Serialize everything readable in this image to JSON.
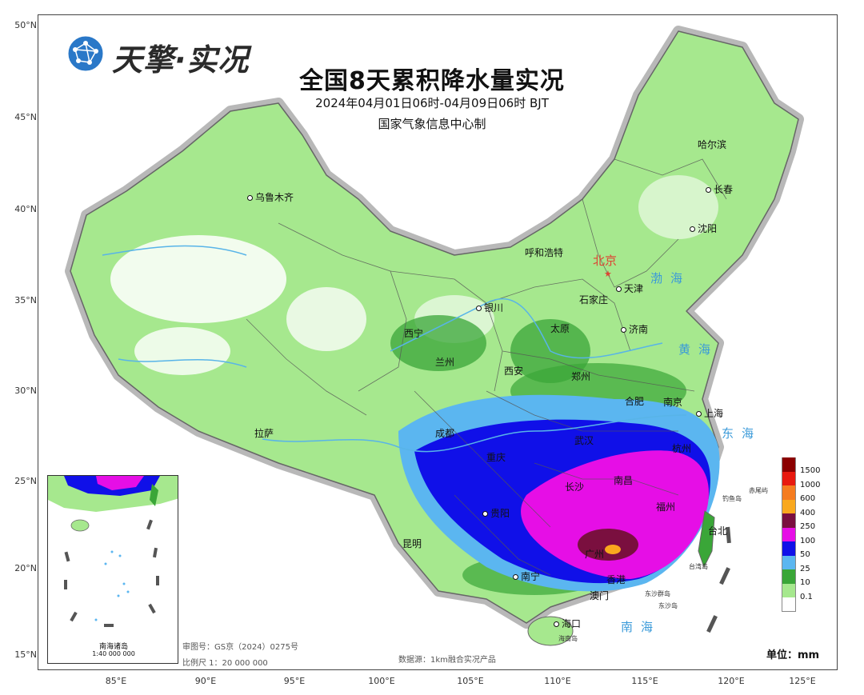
{
  "logo": {
    "text": "天擎·实况",
    "icon": "globe-network-icon"
  },
  "title": "全国8天累积降水量实况",
  "subtitle": "2024年04月01日06时-04月09日06时 BJT",
  "producer": "国家气象信息中心制",
  "axes": {
    "latitudes": [
      "50°N",
      "45°N",
      "40°N",
      "35°N",
      "30°N",
      "25°N",
      "20°N",
      "15°N"
    ],
    "longitudes": [
      "85°E",
      "90°E",
      "95°E",
      "100°E",
      "105°E",
      "110°E",
      "115°E",
      "120°E",
      "125°E"
    ]
  },
  "capital": "北京",
  "cities": [
    "乌鲁木齐",
    "哈尔滨",
    "长春",
    "沈阳",
    "呼和浩特",
    "天津",
    "石家庄",
    "银川",
    "太原",
    "济南",
    "西宁",
    "兰州",
    "西安",
    "郑州",
    "合肥",
    "南京",
    "上海",
    "拉萨",
    "成都",
    "武汉",
    "杭州",
    "南昌",
    "重庆",
    "长沙",
    "福州",
    "贵阳",
    "昆明",
    "台北",
    "南宁",
    "广州",
    "香港",
    "澳门",
    "海口"
  ],
  "seas": {
    "bohai": "渤海",
    "yellow": "黄海",
    "east": "东海",
    "south": "南海"
  },
  "islands": {
    "chiwei": "赤尾屿",
    "diaoyu": "钓鱼岛",
    "taiwan": "台湾岛",
    "dongsha_islands": "东沙群岛",
    "dongsha": "东沙岛",
    "hainan": "海南岛"
  },
  "legend": {
    "levels": [
      {
        "label": "1500",
        "color": "#8b0000"
      },
      {
        "label": "1000",
        "color": "#e8190f"
      },
      {
        "label": "600",
        "color": "#f57c20"
      },
      {
        "label": "400",
        "color": "#f9a81e"
      },
      {
        "label": "250",
        "color": "#7a0f3f"
      },
      {
        "label": "100",
        "color": "#e60ee6"
      },
      {
        "label": "50",
        "color": "#1010e8"
      },
      {
        "label": "25",
        "color": "#5bb6f0"
      },
      {
        "label": "10",
        "color": "#3aa638"
      },
      {
        "label": "0.1",
        "color": "#a6e88e"
      },
      {
        "label": "",
        "color": "#ffffff"
      }
    ],
    "unit": "单位：mm"
  },
  "footer": {
    "review_no": "审图号：GS京（2024）0275号",
    "scale": "比例尺 1：20 000 000",
    "source": "数据源：1km融合实况产品"
  },
  "inset": {
    "title": "南海诸岛",
    "scale": "1:40 000 000"
  },
  "colors": {
    "land_light": "#a6e88e",
    "land_mid": "#3aa638",
    "sea_text": "#3a9ad9",
    "river": "#58b4e8",
    "capital": "#d43"
  }
}
